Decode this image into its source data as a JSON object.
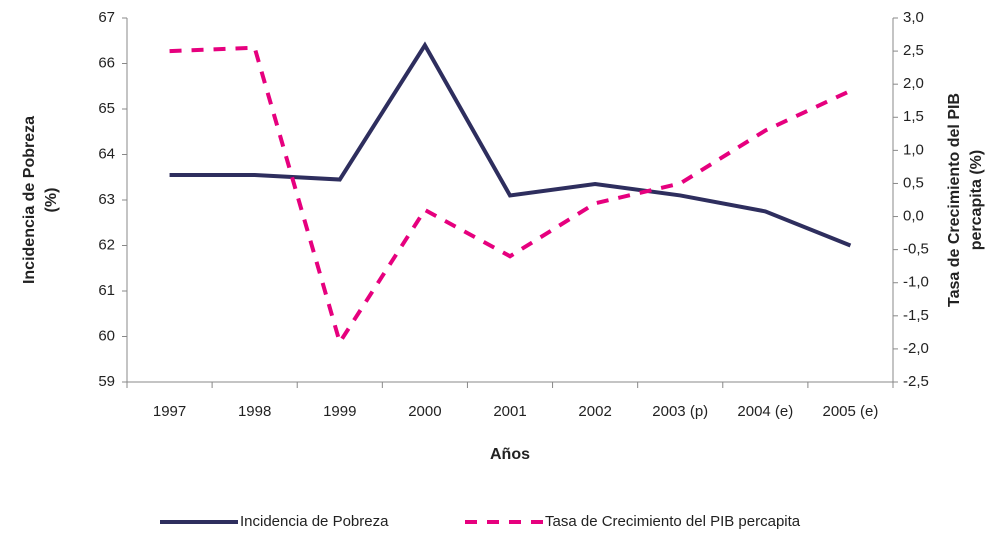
{
  "chart_data": {
    "type": "line",
    "ylabel": [
      "Incidencia de Pobreza",
      "(%)"
    ],
    "y2label": [
      "Tasa de Crecimiento del PIB",
      "percapita (%)"
    ],
    "xlabel": "Años",
    "categories": [
      "1997",
      "1998",
      "1999",
      "2000",
      "2001",
      "2002",
      "2003 (p)",
      "2004 (e)",
      "2005 (e)"
    ],
    "series": [
      {
        "name": "Incidencia de Pobreza",
        "color": "#2e2e5e",
        "dashed": false,
        "values": [
          63.55,
          63.55,
          63.45,
          66.4,
          63.1,
          63.35,
          63.1,
          62.75,
          62.0
        ]
      },
      {
        "name": "Tasa de Crecimiento del PIB percapita",
        "color": "#e6007e",
        "dashed": true,
        "axis": "y2",
        "values": [
          2.5,
          2.55,
          -1.9,
          0.1,
          -0.6,
          0.2,
          0.5,
          1.3,
          1.9
        ]
      }
    ],
    "ylim": [
      59,
      67
    ],
    "yticks": [
      59,
      60,
      61,
      62,
      63,
      64,
      65,
      66,
      67
    ],
    "y2lim": [
      -2.5,
      3.0
    ],
    "y2ticks": [
      {
        "value": -2.5,
        "label": "-2,5"
      },
      {
        "value": -2.0,
        "label": "-2,0"
      },
      {
        "value": -1.5,
        "label": "-1,5"
      },
      {
        "value": -1.0,
        "label": "-1,0"
      },
      {
        "value": -0.5,
        "label": "-0,5"
      },
      {
        "value": 0.0,
        "label": "0,0"
      },
      {
        "value": 0.5,
        "label": "0,5"
      },
      {
        "value": 1.0,
        "label": "1,0"
      },
      {
        "value": 1.5,
        "label": "1,5"
      },
      {
        "value": 2.0,
        "label": "2,0"
      },
      {
        "value": 2.5,
        "label": "2,5"
      },
      {
        "value": 3.0,
        "label": "3,0"
      }
    ],
    "grid": false,
    "legend": "bottom"
  }
}
